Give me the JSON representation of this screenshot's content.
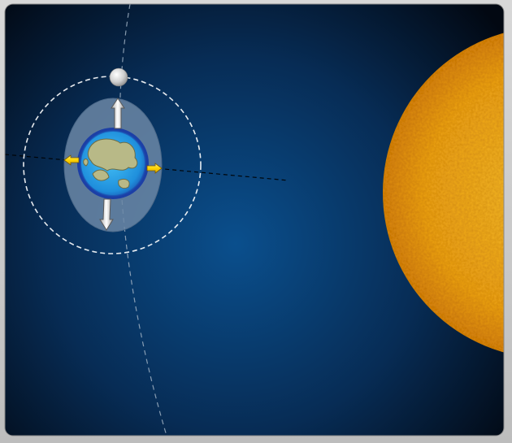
{
  "scene": {
    "type": "tidal-bulge-diagram",
    "bodies": [
      {
        "name": "earth",
        "icon": "earth-globe-icon",
        "ocean_color": "#2aa6e8",
        "land_color": "#b8b987"
      },
      {
        "name": "moon",
        "icon": "moon-icon",
        "color": "#d0d0d0"
      },
      {
        "name": "sun",
        "icon": "sun-icon",
        "color": "#f2aa16"
      }
    ],
    "colors": {
      "space_center": "#0a4f8d",
      "space_edge": "#020812",
      "tidal_bulge": "#6b87a6",
      "moon_orbit": "#ffffff",
      "earth_orbit": "#9fb0c2",
      "alignment_line": "#000000",
      "tidal_arrow_vertical": "#e8e8e8",
      "tidal_arrow_horizontal": "#ffe230"
    },
    "arrows": [
      {
        "name": "tide-arrow-up",
        "direction": "up"
      },
      {
        "name": "tide-arrow-down",
        "direction": "down"
      },
      {
        "name": "tide-arrow-left",
        "direction": "left"
      },
      {
        "name": "tide-arrow-right",
        "direction": "right"
      }
    ]
  }
}
